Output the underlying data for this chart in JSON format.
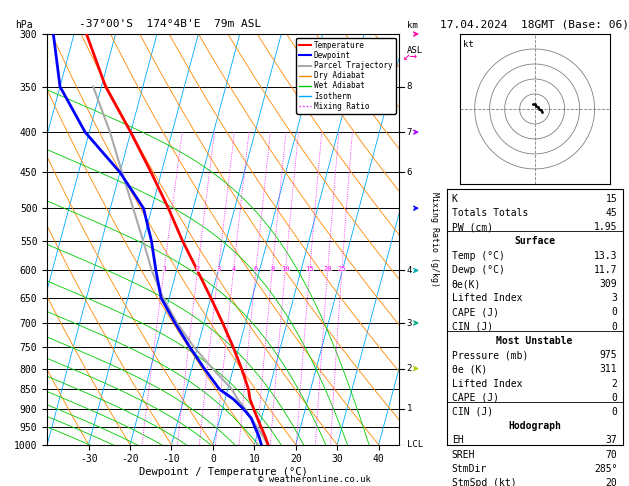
{
  "title_left": "-37°00'S  174°4B'E  79m ASL",
  "title_right": "17.04.2024  18GMT (Base: 06)",
  "hPa_label": "hPa",
  "xlabel": "Dewpoint / Temperature (°C)",
  "pressure_levels": [
    300,
    350,
    400,
    450,
    500,
    550,
    600,
    650,
    700,
    750,
    800,
    850,
    900,
    950,
    1000
  ],
  "pressure_ticks": [
    300,
    350,
    400,
    450,
    500,
    550,
    600,
    650,
    700,
    750,
    800,
    850,
    900,
    950,
    1000
  ],
  "temp_range": [
    -40,
    45
  ],
  "temp_ticks": [
    -30,
    -20,
    -10,
    0,
    10,
    20,
    30,
    40
  ],
  "skew_factor": 22.0,
  "background_color": "#ffffff",
  "plot_bg": "#ffffff",
  "isotherm_color": "#00aaff",
  "dry_adiabat_color": "#ff8800",
  "wet_adiabat_color": "#00cc00",
  "mixing_ratio_color": "#ff00ff",
  "temp_profile_color": "#ff0000",
  "dewpoint_profile_color": "#0000ff",
  "parcel_color": "#aaaaaa",
  "pressure_line_color": "#000000",
  "legend_labels": [
    "Temperature",
    "Dewpoint",
    "Parcel Trajectory",
    "Dry Adiabat",
    "Wet Adiabat",
    "Isotherm",
    "Mixing Ratio"
  ],
  "legend_colors": [
    "#ff0000",
    "#0000ff",
    "#aaaaaa",
    "#ff8800",
    "#00cc00",
    "#00aaff",
    "#ff00ff"
  ],
  "legend_styles": [
    "solid",
    "solid",
    "solid",
    "solid",
    "solid",
    "solid",
    "dotted"
  ],
  "km_labels": {
    "300": "",
    "350": "8",
    "400": "7",
    "450": "6",
    "500": "",
    "550": "",
    "600": "4",
    "650": "",
    "700": "3",
    "750": "",
    "800": "2",
    "850": "",
    "900": "1",
    "950": "",
    "1000": "LCL"
  },
  "temp_data": {
    "pressure": [
      1000,
      975,
      950,
      925,
      900,
      875,
      850,
      800,
      750,
      700,
      650,
      600,
      550,
      500,
      450,
      400,
      350,
      300
    ],
    "temperature": [
      13.3,
      12.0,
      10.5,
      9.0,
      7.5,
      6.0,
      5.0,
      2.0,
      -1.5,
      -5.5,
      -10.0,
      -15.0,
      -20.5,
      -26.0,
      -32.5,
      -40.0,
      -49.0,
      -57.0
    ]
  },
  "dewpoint_data": {
    "pressure": [
      1000,
      975,
      950,
      925,
      900,
      875,
      850,
      800,
      750,
      700,
      650,
      600,
      550,
      500,
      450,
      400,
      350,
      300
    ],
    "dewpoint": [
      11.7,
      10.5,
      9.0,
      7.5,
      5.0,
      2.0,
      -2.0,
      -7.0,
      -12.0,
      -17.0,
      -22.0,
      -25.0,
      -28.0,
      -32.0,
      -40.0,
      -51.0,
      -60.0,
      -65.0
    ]
  },
  "parcel_data": {
    "pressure": [
      1000,
      975,
      950,
      925,
      900,
      875,
      850,
      800,
      750,
      700,
      650,
      600,
      550,
      500,
      450,
      400,
      350
    ],
    "temperature": [
      13.3,
      11.5,
      9.5,
      7.5,
      5.5,
      3.0,
      1.0,
      -5.0,
      -11.0,
      -16.5,
      -21.5,
      -26.0,
      -30.0,
      -34.5,
      -39.5,
      -45.0,
      -52.0
    ]
  },
  "info_panel": {
    "K": 15,
    "Totals_Totals": 45,
    "PW_cm": 1.95,
    "Surface_Temp_C": 13.3,
    "Surface_Dewp_C": 11.7,
    "theta_e_K": 309,
    "Lifted_Index": 3,
    "CAPE_J": 0,
    "CIN_J": 0,
    "MU_Pressure_mb": 975,
    "MU_theta_e_K": 311,
    "MU_Lifted_Index": 2,
    "MU_CAPE_J": 0,
    "MU_CIN_J": 0,
    "EH": 37,
    "SREH": 70,
    "StmDir_deg": 285,
    "StmSpd_kt": 20
  },
  "hodograph_arrow_color": "#ff00aa",
  "wind_barb_colors": [
    "#ff00aa",
    "#aa00ff",
    "#0000ff",
    "#00aaaa",
    "#00aa88",
    "#aacc00"
  ],
  "wind_barb_pressures": [
    300,
    400,
    500,
    600,
    700,
    800
  ],
  "footer": "© weatheronline.co.uk"
}
